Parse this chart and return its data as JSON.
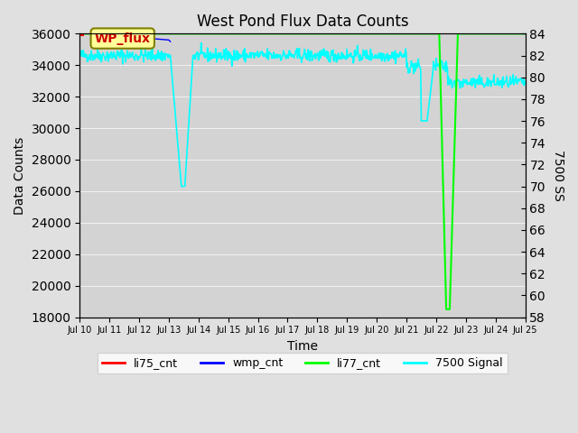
{
  "title": "West Pond Flux Data Counts",
  "xlabel": "Time",
  "ylabel_left": "Data Counts",
  "ylabel_right": "7500 SS",
  "ylim_left": [
    18000,
    36000
  ],
  "ylim_right": [
    58,
    84
  ],
  "yticks_left": [
    18000,
    20000,
    22000,
    24000,
    26000,
    28000,
    30000,
    32000,
    34000,
    36000
  ],
  "yticks_right": [
    58,
    60,
    62,
    64,
    66,
    68,
    70,
    72,
    74,
    76,
    78,
    80,
    82,
    84
  ],
  "xtick_labels": [
    "Jul 10",
    "Jul 11",
    "Jul 12",
    "Jul 13",
    "Jul 14",
    "Jul 15",
    "Jul 16",
    "Jul 17",
    "Jul 18",
    "Jul 19",
    "Jul 20",
    "Jul 21",
    "Jul 22",
    "Jul 23",
    "Jul 24",
    "Jul 25"
  ],
  "background_color": "#e0e0e0",
  "plot_bg_color": "#d3d3d3",
  "li77_cnt_color": "#00ff00",
  "li75_cnt_color": "#ff0000",
  "wmp_cnt_color": "#0000ff",
  "signal_color": "#00ffff",
  "wp_flux_box_color": "#ffff99",
  "wp_flux_text_color": "#cc0000"
}
